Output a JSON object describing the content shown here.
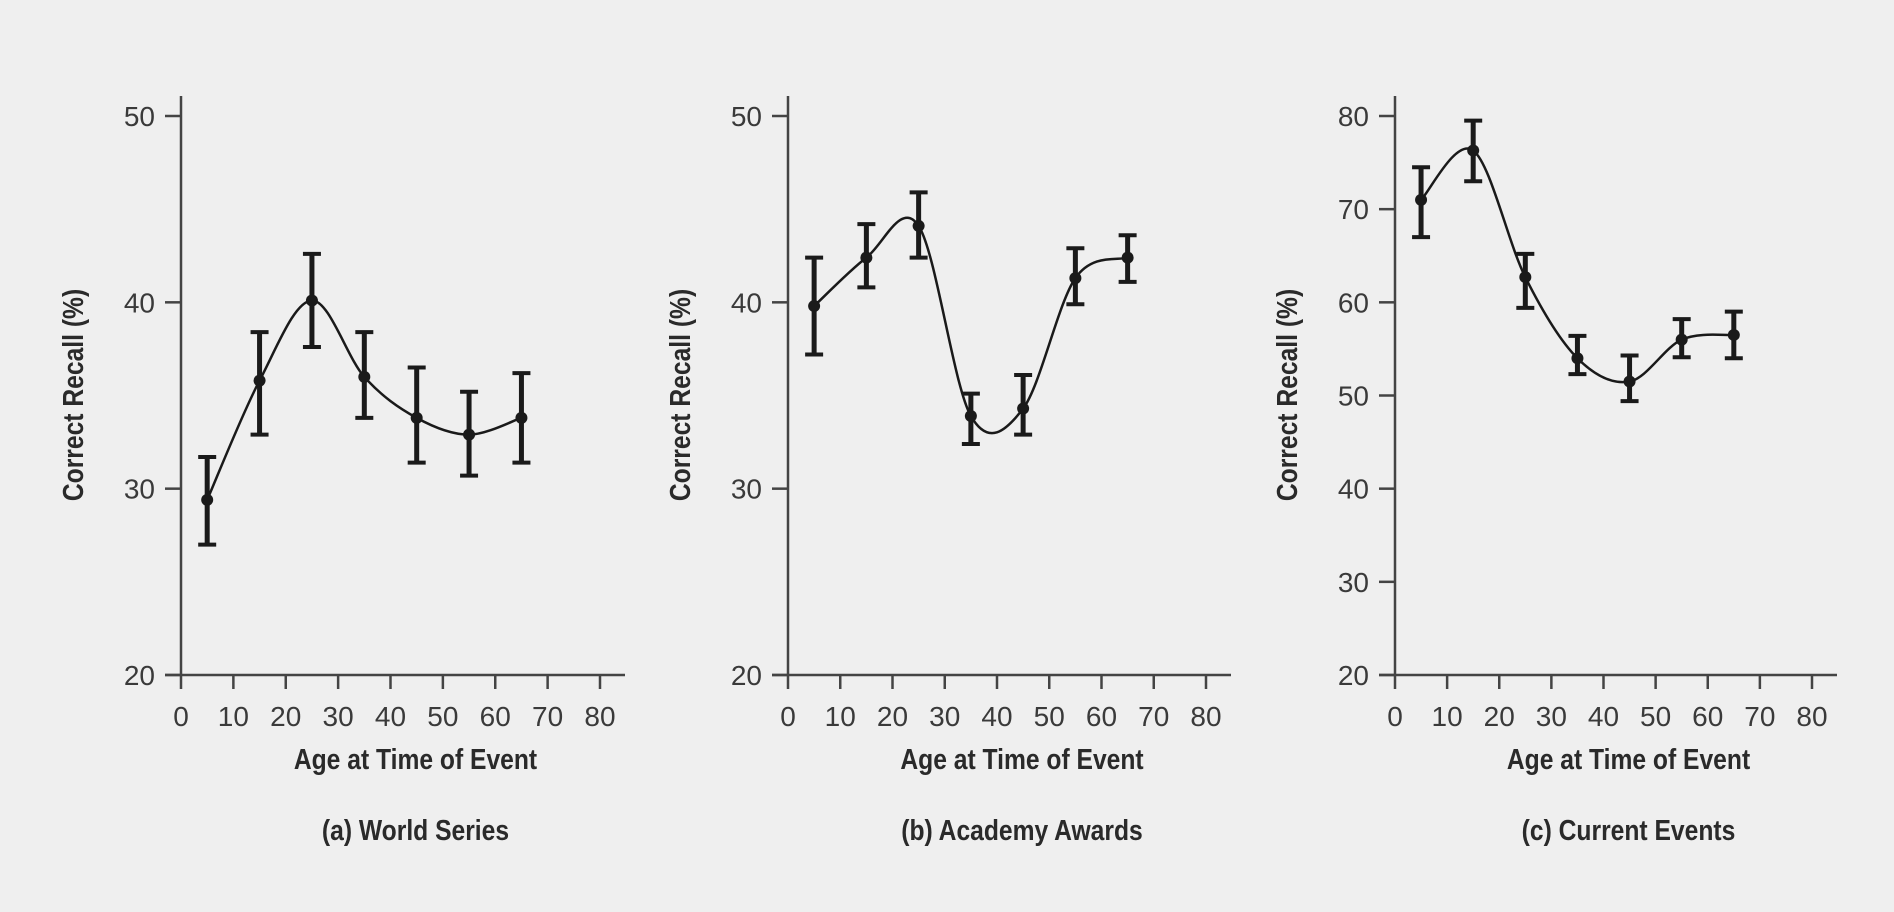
{
  "chart_data": [
    {
      "type": "line",
      "title": "(a) World Series",
      "xlabel": "Age at Time of Event",
      "ylabel": "Correct Recall (%)",
      "xlim": [
        0,
        80
      ],
      "ylim": [
        20,
        50
      ],
      "xticks": [
        0,
        10,
        20,
        30,
        40,
        50,
        60,
        70,
        80
      ],
      "yticks": [
        20,
        30,
        40,
        50
      ],
      "grid": false,
      "x": [
        5,
        15,
        25,
        35,
        45,
        55,
        65
      ],
      "y": [
        29.4,
        35.8,
        40.1,
        36.0,
        33.8,
        32.9,
        33.8
      ],
      "err_low": [
        27.0,
        32.9,
        37.6,
        33.8,
        31.4,
        30.7,
        31.4
      ],
      "err_high": [
        31.7,
        38.4,
        42.6,
        38.4,
        36.5,
        35.2,
        36.2
      ]
    },
    {
      "type": "line",
      "title": "(b) Academy Awards",
      "xlabel": "Age at Time of Event",
      "ylabel": "Correct Recall (%)",
      "xlim": [
        0,
        80
      ],
      "ylim": [
        20,
        50
      ],
      "xticks": [
        0,
        10,
        20,
        30,
        40,
        50,
        60,
        70,
        80
      ],
      "yticks": [
        20,
        30,
        40,
        50
      ],
      "grid": false,
      "x": [
        5,
        15,
        25,
        35,
        45,
        55,
        65
      ],
      "y": [
        39.8,
        42.4,
        44.1,
        33.9,
        34.3,
        41.3,
        42.4
      ],
      "err_low": [
        37.2,
        40.8,
        42.4,
        32.4,
        32.9,
        39.9,
        41.1
      ],
      "err_high": [
        42.4,
        44.2,
        45.9,
        35.1,
        36.1,
        42.9,
        43.6
      ]
    },
    {
      "type": "line",
      "title": "(c) Current Events",
      "xlabel": "Age at Time of Event",
      "ylabel": "Correct Recall (%)",
      "xlim": [
        0,
        80
      ],
      "ylim": [
        20,
        80
      ],
      "xticks": [
        0,
        10,
        20,
        30,
        40,
        50,
        60,
        70,
        80
      ],
      "yticks": [
        20,
        30,
        40,
        50,
        60,
        70,
        80
      ],
      "grid": false,
      "x": [
        5,
        15,
        25,
        35,
        45,
        55,
        65
      ],
      "y": [
        71.0,
        76.3,
        62.7,
        54.0,
        51.5,
        56.0,
        56.5
      ],
      "err_low": [
        67.0,
        73.0,
        59.4,
        52.3,
        49.4,
        54.1,
        54.0
      ],
      "err_high": [
        74.5,
        79.5,
        65.2,
        56.4,
        54.3,
        58.2,
        59.0
      ]
    }
  ],
  "colors": {
    "background": "#efefef",
    "ink": "#1a1a1a",
    "axis": "#444444"
  }
}
